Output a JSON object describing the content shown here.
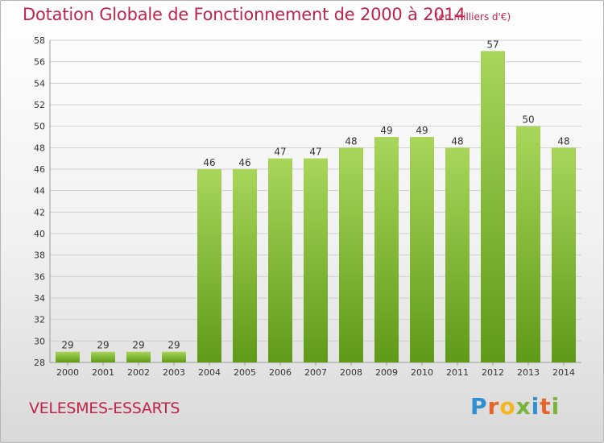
{
  "title": "Dotation Globale de Fonctionnement de 2000 à 2014",
  "unit": "(en milliers d'€)",
  "commune": "VELESMES-ESSARTS",
  "logo": {
    "letters": [
      {
        "char": "P",
        "color": "#2f8fd0"
      },
      {
        "char": "r",
        "color": "#e8632a"
      },
      {
        "char": "o",
        "color": "#f2b61f"
      },
      {
        "char": "x",
        "color": "#79b43a"
      },
      {
        "char": "i",
        "color": "#2f8fd0"
      },
      {
        "char": "t",
        "color": "#e8632a"
      },
      {
        "char": "i",
        "color": "#79b43a"
      }
    ]
  },
  "colors": {
    "bar": "#79b92a",
    "bar_light": "#a8d65a",
    "bar_dark": "#5f9a18",
    "grid": "#d0d0d0",
    "text": "#333333",
    "accent": "#c0244b"
  },
  "chart_data": {
    "type": "bar",
    "categories": [
      "2000",
      "2001",
      "2002",
      "2003",
      "2004",
      "2005",
      "2006",
      "2007",
      "2008",
      "2009",
      "2010",
      "2011",
      "2012",
      "2013",
      "2014"
    ],
    "values": [
      29,
      29,
      29,
      29,
      46,
      46,
      47,
      47,
      48,
      49,
      49,
      48,
      57,
      50,
      48
    ],
    "ylim": [
      28,
      58
    ],
    "yticks": [
      28,
      30,
      32,
      34,
      36,
      38,
      40,
      42,
      44,
      46,
      48,
      50,
      52,
      54,
      56,
      58
    ],
    "grid": true
  }
}
